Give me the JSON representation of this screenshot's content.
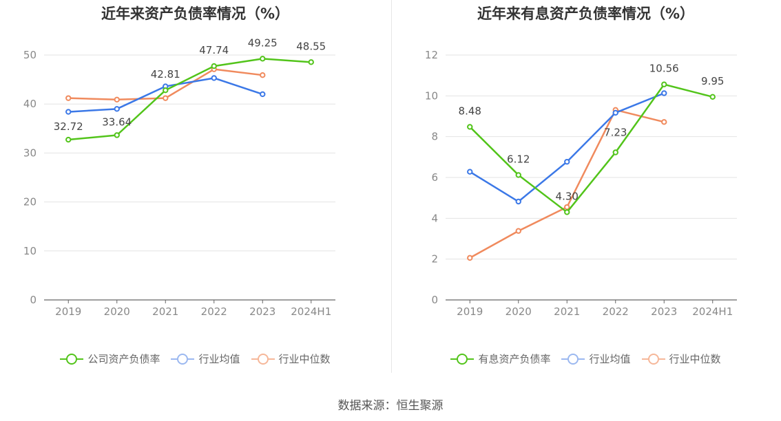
{
  "source_label": "数据来源：恒生聚源",
  "chart_data": [
    {
      "type": "line",
      "title": "近年来资产负债率情况（%）",
      "categories": [
        "2019",
        "2020",
        "2021",
        "2022",
        "2023",
        "2024H1"
      ],
      "ylim": [
        0,
        50
      ],
      "yticks": [
        "0",
        "10",
        "20",
        "30",
        "40",
        "50"
      ],
      "grid": true,
      "legend_position": "bottom",
      "series": [
        {
          "name": "公司资产负债率",
          "color": "#52c41a",
          "values": [
            32.72,
            33.64,
            42.81,
            47.74,
            49.25,
            48.55
          ],
          "labels": [
            "32.72",
            "33.64",
            "42.81",
            "47.74",
            "49.25",
            "48.55"
          ]
        },
        {
          "name": "行业均值",
          "color": "#3b78e7",
          "values": [
            38.4,
            39.0,
            43.6,
            45.3,
            42.0,
            null
          ]
        },
        {
          "name": "行业中位数",
          "color": "#f08a5d",
          "values": [
            41.2,
            40.9,
            41.2,
            47.1,
            45.9,
            null
          ]
        }
      ]
    },
    {
      "type": "line",
      "title": "近年来有息资产负债率情况（%）",
      "categories": [
        "2019",
        "2020",
        "2021",
        "2022",
        "2023",
        "2024H1"
      ],
      "ylim": [
        0,
        12
      ],
      "yticks": [
        "0",
        "2",
        "4",
        "6",
        "8",
        "10",
        "12"
      ],
      "grid": true,
      "legend_position": "bottom",
      "series": [
        {
          "name": "有息资产负债率",
          "color": "#52c41a",
          "values": [
            8.48,
            6.12,
            4.3,
            7.23,
            10.56,
            9.95
          ],
          "labels": [
            "8.48",
            "6.12",
            "4.30",
            "7.23",
            "10.56",
            "9.95"
          ]
        },
        {
          "name": "行业均值",
          "color": "#3b78e7",
          "values": [
            6.28,
            4.82,
            6.77,
            9.17,
            10.13,
            null
          ]
        },
        {
          "name": "行业中位数",
          "color": "#f08a5d",
          "values": [
            2.06,
            3.38,
            4.55,
            9.31,
            8.72,
            null
          ]
        }
      ]
    }
  ]
}
